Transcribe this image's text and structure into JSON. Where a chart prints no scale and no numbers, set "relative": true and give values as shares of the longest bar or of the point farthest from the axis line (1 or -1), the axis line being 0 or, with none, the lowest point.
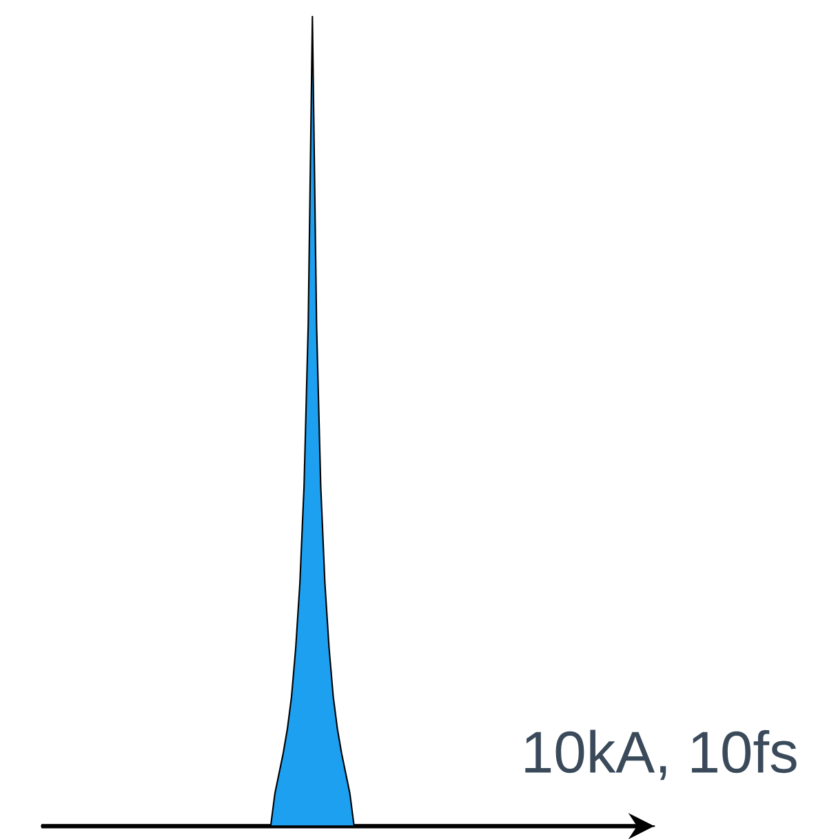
{
  "chart_data": {
    "type": "area",
    "relative": true,
    "color": "#1ea0f0",
    "categories": [
      null,
      null,
      null,
      null,
      null,
      null,
      null,
      null,
      null,
      null,
      null,
      null,
      null,
      null,
      null,
      null,
      null,
      null,
      null,
      null,
      null,
      null,
      null,
      null,
      null,
      null,
      null,
      null,
      null,
      null,
      null,
      null,
      null,
      null,
      null,
      null,
      null,
      null,
      null,
      null,
      null,
      null,
      null,
      null,
      null,
      null,
      null,
      null,
      null,
      null,
      null,
      null,
      null,
      null,
      null,
      null,
      null,
      null,
      null,
      null,
      null,
      null,
      null,
      null,
      null,
      null,
      null,
      null,
      null,
      null,
      null,
      null,
      null,
      null,
      null,
      null,
      null,
      null,
      null,
      null,
      null,
      null,
      null,
      null,
      null,
      null,
      null,
      null,
      null,
      null,
      null,
      null,
      null,
      null,
      null,
      null,
      null,
      null,
      null,
      null,
      null,
      null,
      null,
      null,
      null,
      null,
      null,
      null,
      null,
      null,
      null,
      null,
      null,
      null,
      null,
      null,
      null,
      null,
      null,
      null,
      null,
      null,
      null,
      null,
      null,
      null,
      null,
      null,
      null,
      null,
      null,
      null,
      null,
      null,
      null,
      null,
      null,
      null,
      null,
      null,
      null,
      null,
      null,
      null,
      null,
      null,
      null,
      null
    ],
    "values": [
      0,
      0,
      0,
      0,
      0,
      0,
      0,
      0,
      0,
      0,
      0,
      0,
      0,
      0,
      0,
      0,
      0,
      0,
      0,
      0,
      0,
      0,
      0,
      0,
      0,
      0,
      0,
      0,
      0,
      0,
      0,
      0,
      0,
      0,
      0,
      0,
      0,
      0,
      0,
      0,
      0,
      0,
      0,
      0,
      0,
      0,
      0,
      0,
      0,
      0,
      0,
      0,
      0,
      0,
      0,
      0,
      0.04,
      0.065,
      0.09,
      0.12,
      0.16,
      0.22,
      0.3,
      0.42,
      0.62,
      1,
      0.62,
      0.42,
      0.3,
      0.22,
      0.16,
      0.12,
      0.09,
      0.065,
      0.04,
      0,
      0,
      0,
      0,
      0,
      0,
      0,
      0,
      0,
      0,
      0,
      0,
      0,
      0,
      0,
      0,
      0,
      0,
      0,
      0,
      0,
      0,
      0,
      0,
      0,
      0,
      0,
      0,
      0,
      0,
      0,
      0,
      0,
      0,
      0,
      0,
      0,
      0,
      0,
      0,
      0,
      0,
      0,
      0,
      0,
      0,
      0,
      0,
      0,
      0,
      0,
      0,
      0,
      0,
      0,
      0,
      0,
      0,
      0,
      0,
      0,
      0,
      0,
      0,
      0,
      0,
      0,
      0,
      0,
      0,
      0,
      0,
      0
    ],
    "annotations": [
      "10kA, 10fs"
    ]
  }
}
